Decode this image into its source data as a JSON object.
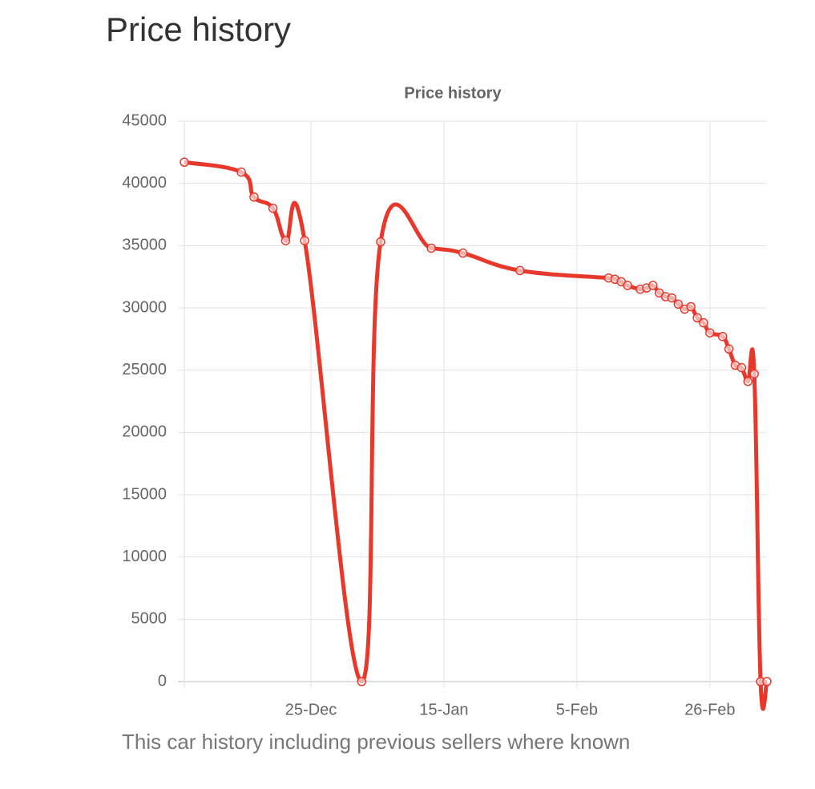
{
  "page_title": "Price history",
  "chart_data": {
    "type": "line",
    "title": "Price history",
    "x": [
      "5-Dec",
      "14-Dec",
      "16-Dec",
      "19-Dec",
      "21-Dec",
      "24-Dec",
      "2-Jan",
      "5-Jan",
      "13-Jan",
      "18-Jan",
      "27-Jan",
      "10-Feb",
      "11-Feb",
      "12-Feb",
      "13-Feb",
      "15-Feb",
      "16-Feb",
      "17-Feb",
      "18-Feb",
      "19-Feb",
      "20-Feb",
      "21-Feb",
      "22-Feb",
      "23-Feb",
      "24-Feb",
      "25-Feb",
      "26-Feb",
      "28-Feb",
      "1-Mar",
      "2-Mar",
      "3-Mar",
      "4-Mar",
      "5-Mar",
      "6-Mar",
      "7-Mar"
    ],
    "values": [
      41700,
      40900,
      38900,
      38000,
      35400,
      35400,
      0,
      35300,
      34800,
      34400,
      33000,
      32400,
      32300,
      32100,
      31800,
      31500,
      31600,
      31800,
      31200,
      30900,
      30800,
      30300,
      29900,
      30100,
      29200,
      28800,
      28000,
      27700,
      26700,
      25400,
      25200,
      24100,
      24700,
      0,
      0
    ],
    "color": "#e8382b",
    "xlim": [
      "5-Dec",
      "7-Mar"
    ],
    "xticks": [
      "25-Dec",
      "15-Jan",
      "5-Feb",
      "26-Feb"
    ],
    "ylim": [
      0,
      45000
    ],
    "yticks": [
      0,
      5000,
      10000,
      15000,
      20000,
      25000,
      30000,
      35000,
      40000,
      45000
    ],
    "grid": true
  },
  "caption": "This car history including previous sellers where known"
}
